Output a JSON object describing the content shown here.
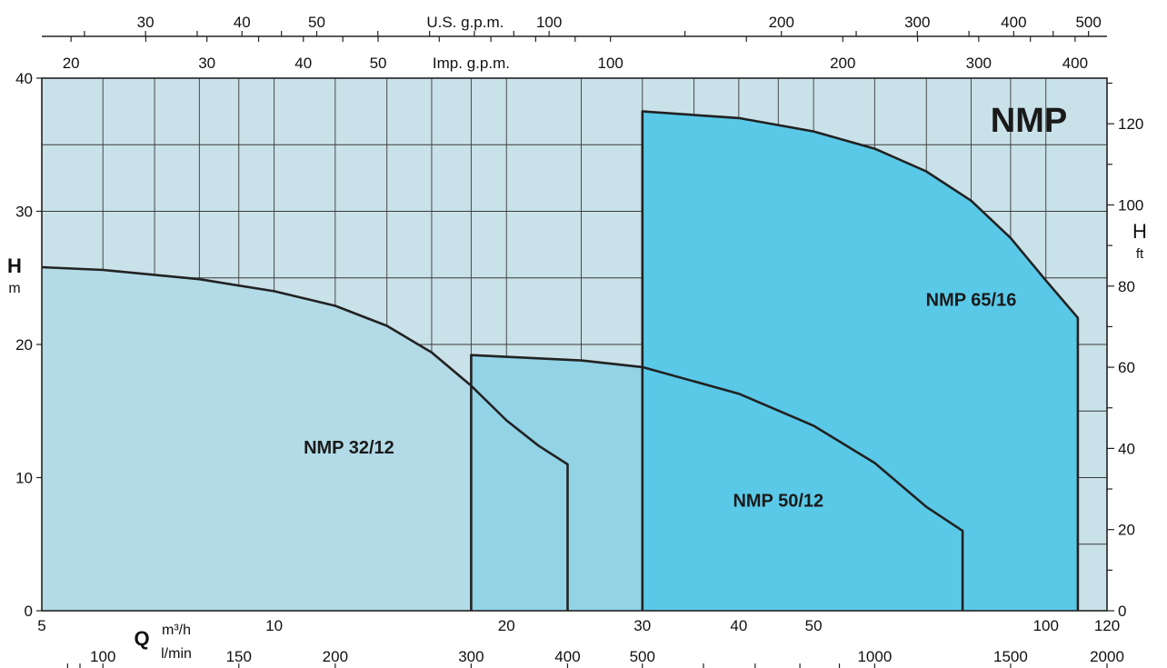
{
  "chart_data": {
    "type": "area",
    "title": "NMP",
    "x_primary": {
      "unit_top": "m³/h",
      "unit_bottom": "l/min",
      "symbol": "Q",
      "range": [
        5,
        120
      ],
      "scale": "log",
      "tick_labels": [
        5,
        10,
        20,
        30,
        40,
        50,
        100,
        120
      ]
    },
    "x_lmin": {
      "range": [
        83.33,
        2000
      ],
      "tick_labels": [
        100,
        150,
        200,
        300,
        400,
        500,
        1000,
        1500,
        2000
      ]
    },
    "x_usgpm": {
      "label": "U.S. g.p.m.",
      "tick_labels": [
        30,
        40,
        50,
        100,
        200,
        300,
        400,
        500
      ]
    },
    "x_impgpm": {
      "label": "Imp. g.p.m.",
      "tick_labels": [
        20,
        30,
        40,
        50,
        100,
        200,
        300,
        400
      ]
    },
    "y_left": {
      "symbol": "H",
      "unit": "m",
      "range": [
        0,
        40
      ],
      "tick_labels": [
        0,
        10,
        20,
        30,
        40
      ]
    },
    "y_right": {
      "symbol": "H",
      "unit": "ft",
      "range": [
        0,
        131.23
      ],
      "tick_labels": [
        0,
        20,
        40,
        60,
        80,
        100,
        120
      ]
    },
    "series": [
      {
        "name": "NMP 32/12",
        "color": "#b2dbe7",
        "points": [
          [
            5,
            25.8
          ],
          [
            6,
            25.6
          ],
          [
            8,
            24.9
          ],
          [
            10,
            24.0
          ],
          [
            12,
            22.9
          ],
          [
            14,
            21.4
          ],
          [
            16,
            19.4
          ],
          [
            18,
            16.9
          ],
          [
            20,
            14.3
          ],
          [
            22,
            12.4
          ],
          [
            24,
            11.0
          ]
        ]
      },
      {
        "name": "NMP 50/12",
        "color": "#92d3e6",
        "points": [
          [
            18,
            19.2
          ],
          [
            25,
            18.8
          ],
          [
            30,
            18.3
          ],
          [
            40,
            16.3
          ],
          [
            50,
            13.9
          ],
          [
            60,
            11.1
          ],
          [
            70,
            7.8
          ],
          [
            78,
            6.0
          ]
        ]
      },
      {
        "name": "NMP 65/16",
        "color": "#5ac9e8",
        "points": [
          [
            30,
            37.5
          ],
          [
            40,
            37.0
          ],
          [
            50,
            36.0
          ],
          [
            60,
            34.7
          ],
          [
            70,
            33.0
          ],
          [
            80,
            30.8
          ],
          [
            90,
            28.0
          ],
          [
            100,
            24.8
          ],
          [
            110,
            22.0
          ]
        ]
      }
    ],
    "grid": true
  }
}
